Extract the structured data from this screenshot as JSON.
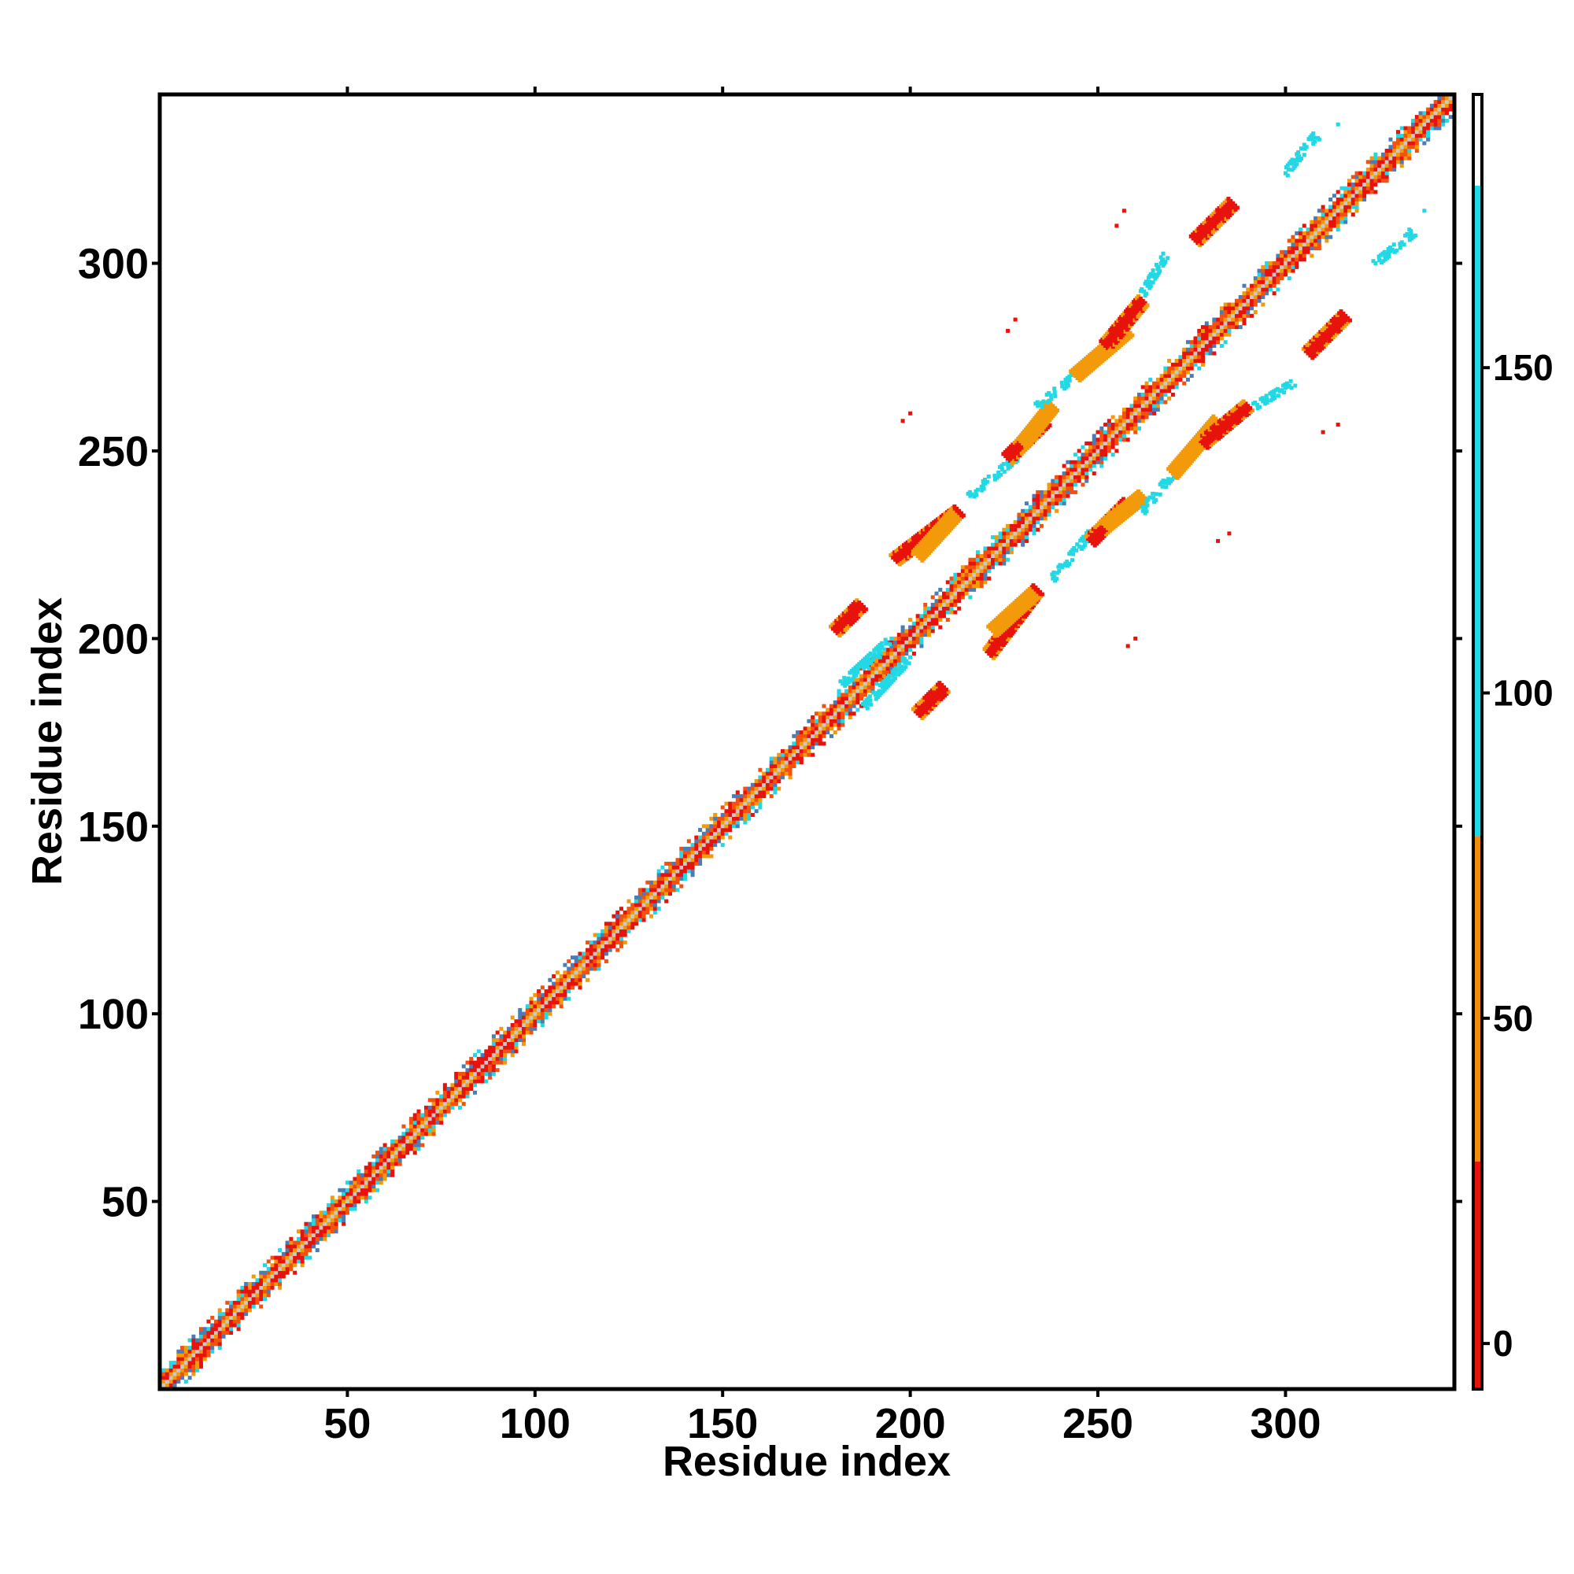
{
  "chart_data": {
    "type": "heatmap",
    "title": "",
    "xlabel": "Residue index",
    "ylabel": "Residue index",
    "xlim": [
      0,
      345
    ],
    "ylim": [
      0,
      345
    ],
    "xticks": [
      50,
      100,
      150,
      200,
      250,
      300
    ],
    "yticks": [
      50,
      100,
      150,
      200,
      250,
      300
    ],
    "grid": false,
    "colorbar": {
      "ticks": [
        0,
        50,
        100,
        150
      ],
      "range": [
        -7,
        192
      ],
      "bands": [
        {
          "from": -7,
          "to": 28,
          "color": "#e8120c"
        },
        {
          "from": 28,
          "to": 78,
          "color": "#f08d0e"
        },
        {
          "from": 78,
          "to": 178,
          "color": "#22d8e4"
        },
        {
          "from": 178,
          "to": 192,
          "color": "#ffffff"
        }
      ]
    },
    "colors": {
      "red": "#e8120c",
      "orange_red": "#f2520e",
      "orange": "#f39a0a",
      "cyan": "#22d8e4",
      "steel_blue": "#4a7db5"
    },
    "diagonal": {
      "start": 1,
      "end": 345
    },
    "contact_segments": [
      {
        "i_start": 180,
        "i_end": 187,
        "j_start": 202,
        "j_end": 209,
        "color": "red"
      },
      {
        "i_start": 182,
        "i_end": 195,
        "j_start": 188,
        "j_end": 200,
        "color": "cyan",
        "sparse": true
      },
      {
        "i_start": 196,
        "i_end": 213,
        "j_start": 221,
        "j_end": 234,
        "color": "red"
      },
      {
        "i_start": 202,
        "i_end": 212,
        "j_start": 222,
        "j_end": 233,
        "color": "orange"
      },
      {
        "i_start": 216,
        "i_end": 228,
        "j_start": 238,
        "j_end": 248,
        "color": "cyan",
        "sparse": true
      },
      {
        "i_start": 226,
        "i_end": 236,
        "j_start": 248,
        "j_end": 258,
        "color": "red"
      },
      {
        "i_start": 230,
        "i_end": 238,
        "j_start": 252,
        "j_end": 262,
        "color": "orange"
      },
      {
        "i_start": 234,
        "i_end": 244,
        "j_start": 262,
        "j_end": 270,
        "color": "cyan",
        "sparse": true
      },
      {
        "i_start": 244,
        "i_end": 258,
        "j_start": 270,
        "j_end": 282,
        "color": "orange"
      },
      {
        "i_start": 252,
        "i_end": 262,
        "j_start": 278,
        "j_end": 290,
        "color": "red"
      },
      {
        "i_start": 262,
        "i_end": 268,
        "j_start": 292,
        "j_end": 302,
        "color": "cyan",
        "sparse": true
      },
      {
        "i_start": 276,
        "i_end": 286,
        "j_start": 306,
        "j_end": 316,
        "color": "red"
      },
      {
        "i_start": 300,
        "i_end": 308,
        "j_start": 324,
        "j_end": 334,
        "color": "cyan",
        "sparse": true
      }
    ],
    "isolated_points": [
      {
        "i": 198,
        "j": 258,
        "color": "red"
      },
      {
        "i": 200,
        "j": 260,
        "color": "red"
      },
      {
        "i": 226,
        "j": 282,
        "color": "red"
      },
      {
        "i": 228,
        "j": 285,
        "color": "red"
      },
      {
        "i": 255,
        "j": 310,
        "color": "red"
      },
      {
        "i": 257,
        "j": 314,
        "color": "red"
      },
      {
        "i": 309,
        "j": 333,
        "color": "cyan"
      },
      {
        "i": 314,
        "j": 337,
        "color": "cyan"
      }
    ]
  }
}
